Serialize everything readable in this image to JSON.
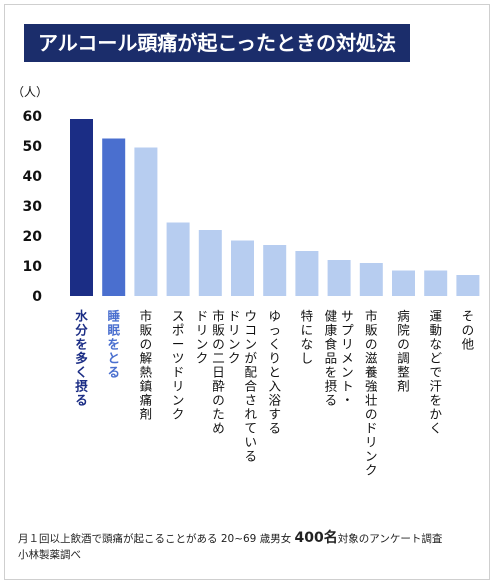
{
  "chart_data": {
    "type": "bar",
    "title": "アルコール頭痛が起こったときの対処法",
    "ylabel": "（人）",
    "ylim": [
      0,
      60
    ],
    "yticks": [
      0,
      10,
      20,
      30,
      40,
      50,
      60
    ],
    "grid": false,
    "categories": [
      "水分を多く摂る",
      "睡眠をとる",
      "市販の解熱鎮痛剤",
      "スポーツドリンク",
      "市販の二日酔のためのドリンク",
      "ウコンが配合されているドリンク",
      "ゆっくりと入浴する",
      "特になし",
      "サプリメント・健康食品を摂る",
      "市販の滋養強壮のドリンク",
      "病院の調整剤",
      "運動などで汗をかく",
      "その他"
    ],
    "label_lines": [
      [
        "水分を多く摂る"
      ],
      [
        "睡眠をとる"
      ],
      [
        "市販の解熱鎮痛剤"
      ],
      [
        "スポーツドリンク"
      ],
      [
        "市販の二日酔のため",
        "ドリンク"
      ],
      [
        "ウコンが配合されている",
        "ドリンク"
      ],
      [
        "ゆっくりと入浴する"
      ],
      [
        "特になし"
      ],
      [
        "サプリメント・",
        "健康食品を摂る"
      ],
      [
        "市販の滋養強壮のドリンク"
      ],
      [
        "病院の調整剤"
      ],
      [
        "運動などで汗をかく"
      ],
      [
        "その他"
      ]
    ],
    "values": [
      59,
      52.5,
      49.5,
      24.5,
      22,
      18.5,
      17,
      15,
      12,
      11,
      8.5,
      8.5,
      7
    ],
    "colors": [
      "#1b2d85",
      "#4a6fcf",
      "#b7cdf0",
      "#b7cdf0",
      "#b7cdf0",
      "#b7cdf0",
      "#b7cdf0",
      "#b7cdf0",
      "#b7cdf0",
      "#b7cdf0",
      "#b7cdf0",
      "#b7cdf0",
      "#b7cdf0"
    ],
    "label_colors": [
      "#1b2d85",
      "#4a6fcf",
      "#111111",
      "#111111",
      "#111111",
      "#111111",
      "#111111",
      "#111111",
      "#111111",
      "#111111",
      "#111111",
      "#111111",
      "#111111"
    ]
  },
  "footer": {
    "note_a": "月１回以上飲酒で頭痛が起こることがある 20~69 歳男女",
    "note_b": "400名",
    "note_c": "対象のアンケート調査",
    "source": "小林製薬調べ"
  }
}
